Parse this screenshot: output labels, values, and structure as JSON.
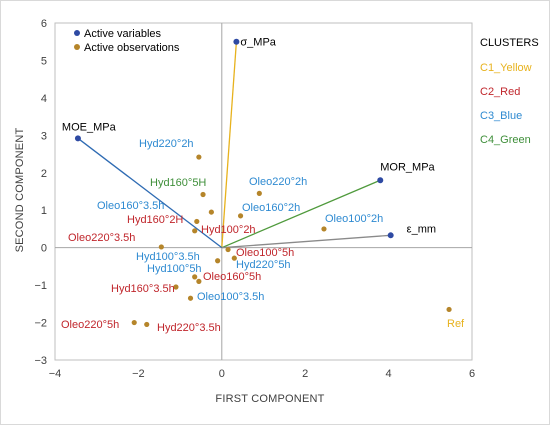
{
  "chart_data": {
    "type": "scatter",
    "title": "",
    "xlabel": "FIRST COMPONENT",
    "ylabel": "SECOND COMPONENT",
    "xlim": [
      -4,
      6
    ],
    "ylim": [
      -3,
      6
    ],
    "x_ticks": [
      "−4",
      "−2",
      "0",
      "2",
      "4",
      "6"
    ],
    "y_ticks": [
      "−3",
      "−2",
      "−1",
      "0",
      "1",
      "2",
      "3",
      "4",
      "5",
      "6"
    ],
    "grid": false,
    "legend": {
      "placement": "top-left",
      "entries": [
        {
          "name": "Active variables",
          "color": "#2e4aa3"
        },
        {
          "name": "Active observations",
          "color": "#b5852a"
        }
      ]
    },
    "clusters": {
      "title": "CLUSTERS",
      "items": [
        {
          "id": "C1",
          "label": "C1_Yellow",
          "color": "#e7b21d"
        },
        {
          "id": "C2",
          "label": "C2_Red",
          "color": "#c0262c"
        },
        {
          "id": "C3",
          "label": "C3_Blue",
          "color": "#2e8ad1"
        },
        {
          "id": "C4",
          "label": "C4_Green",
          "color": "#3f8f3a"
        }
      ]
    },
    "variables": [
      {
        "name": "σ_MPa",
        "x": 0.35,
        "y": 5.5,
        "color": "#e7b21d"
      },
      {
        "name": "MOE_MPa",
        "x": -3.45,
        "y": 2.92,
        "color": "#2e6bb3"
      },
      {
        "name": "MOR_MPa",
        "x": 3.8,
        "y": 1.8,
        "color": "#4f9a3c"
      },
      {
        "name": "ε_mm",
        "x": 4.05,
        "y": 0.33,
        "color": "#8a8a8a"
      }
    ],
    "observations": [
      {
        "name": "Hyd220°2h",
        "x": -0.55,
        "y": 2.42,
        "cluster": "C3"
      },
      {
        "name": "Hyd160°5H",
        "x": -0.45,
        "y": 1.42,
        "cluster": "C4"
      },
      {
        "name": "Oleo220°2h",
        "x": 0.9,
        "y": 1.45,
        "cluster": "C3"
      },
      {
        "name": "Oleo160°3.5h",
        "x": -0.25,
        "y": 0.95,
        "cluster": "C3"
      },
      {
        "name": "Oleo160°2h",
        "x": 0.45,
        "y": 0.85,
        "cluster": "C3"
      },
      {
        "name": "Hyd160°2H",
        "x": -0.6,
        "y": 0.7,
        "cluster": "C2"
      },
      {
        "name": "Hyd100°2h",
        "x": -0.65,
        "y": 0.45,
        "cluster": "C2"
      },
      {
        "name": "Oleo100°2h",
        "x": 2.45,
        "y": 0.5,
        "cluster": "C3"
      },
      {
        "name": "Oleo220°3.5h",
        "x": -1.45,
        "y": 0.02,
        "cluster": "C2"
      },
      {
        "name": "Oleo100°5h",
        "x": 0.15,
        "y": -0.05,
        "cluster": "C2"
      },
      {
        "name": "Hyd220°5h",
        "x": 0.3,
        "y": -0.28,
        "cluster": "C3"
      },
      {
        "name": "Hyd100°3.5h",
        "x": -0.1,
        "y": -0.35,
        "cluster": "C3"
      },
      {
        "name": "Hyd100°5h",
        "x": -0.65,
        "y": -0.78,
        "cluster": "C3"
      },
      {
        "name": "Oleo160°5h",
        "x": -0.55,
        "y": -0.9,
        "cluster": "C2"
      },
      {
        "name": "Hyd160°3.5h",
        "x": -1.1,
        "y": -1.05,
        "cluster": "C2"
      },
      {
        "name": "Oleo100°3.5h",
        "x": -0.75,
        "y": -1.35,
        "cluster": "C3"
      },
      {
        "name": "Oleo220°5h",
        "x": -2.1,
        "y": -2.0,
        "cluster": "C2"
      },
      {
        "name": "Hyd220°3.5h",
        "x": -1.8,
        "y": -2.05,
        "cluster": "C2"
      },
      {
        "name": "Ref",
        "x": 5.45,
        "y": -1.65,
        "cluster": "C1"
      }
    ],
    "observation_color": "#b5852a"
  }
}
